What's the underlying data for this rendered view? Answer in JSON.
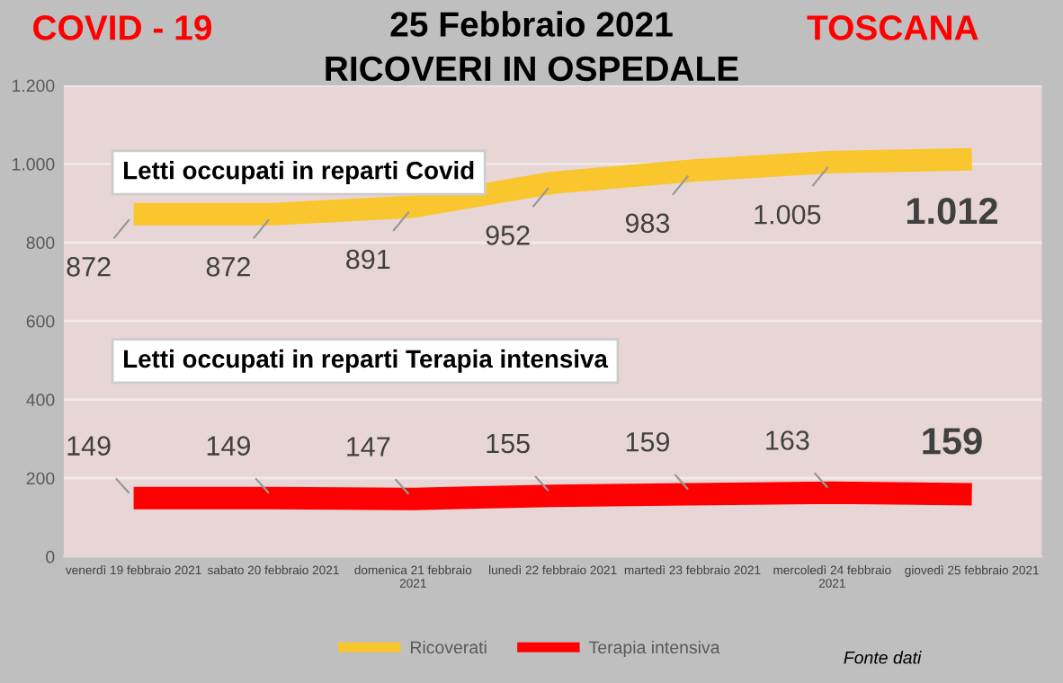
{
  "chart_data": {
    "type": "line",
    "title": "25 Febbraio 2021",
    "subtitle": "RICOVERI IN OSPEDALE",
    "categories": [
      "venerdì 19 febbraio 2021",
      "sabato 20 febbraio 2021",
      "domenica 21 febbraio\n2021",
      "lunedì 22 febbraio 2021",
      "martedì 23 febbraio 2021",
      "mercoledì 24 febbraio\n2021",
      "giovedì 25 febbraio 2021"
    ],
    "series": [
      {
        "name": "Ricoverati",
        "color": "#f9c62e",
        "values": [
          872,
          872,
          891,
          952,
          983,
          1005,
          1012
        ],
        "value_labels": [
          "872",
          "872",
          "891",
          "952",
          "983",
          "1.005",
          "1.012"
        ]
      },
      {
        "name": "Terapia intensiva",
        "color": "#ff0000",
        "values": [
          149,
          149,
          147,
          155,
          159,
          163,
          159
        ],
        "value_labels": [
          "149",
          "149",
          "147",
          "155",
          "159",
          "163",
          "159"
        ]
      }
    ],
    "ylim": [
      0,
      1200
    ],
    "yticks": [
      0,
      200,
      400,
      600,
      800,
      {
        "value": 1000,
        "label": "1.000"
      },
      {
        "value": 1200,
        "label": "1.200"
      }
    ],
    "grid": "y",
    "legend": "bottom",
    "marker": "none",
    "line_style": "solid",
    "annotations": [
      "COVID - 19",
      "TOSCANA",
      "Letti occupati in reparti Covid",
      "Letti occupati in reparti Terapia intensiva",
      "Fonte dati"
    ]
  }
}
